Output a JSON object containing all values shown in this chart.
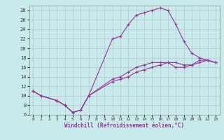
{
  "xlabel": "Windchill (Refroidissement éolien,°C)",
  "background_color": "#c8eaea",
  "grid_color": "#b0c8c8",
  "line_color": "#993399",
  "xlim": [
    -0.5,
    23.5
  ],
  "ylim": [
    6,
    29
  ],
  "xticks": [
    0,
    1,
    2,
    3,
    4,
    5,
    6,
    7,
    8,
    9,
    10,
    11,
    12,
    13,
    14,
    15,
    16,
    17,
    18,
    19,
    20,
    21,
    22,
    23
  ],
  "yticks": [
    6,
    8,
    10,
    12,
    14,
    16,
    18,
    20,
    22,
    24,
    26,
    28
  ],
  "line1_x": [
    0,
    1,
    3,
    4,
    5,
    6,
    7,
    10,
    11,
    12,
    13,
    14,
    15,
    16,
    17,
    18,
    19,
    20,
    21,
    22,
    23
  ],
  "line1_y": [
    11,
    10,
    9,
    8,
    6.5,
    7,
    10,
    22,
    22.5,
    25,
    27,
    27.5,
    28,
    28.5,
    28,
    25,
    21.5,
    19,
    18,
    17.5,
    17
  ],
  "line2_x": [
    0,
    1,
    3,
    4,
    5,
    6,
    7,
    10,
    11,
    12,
    13,
    14,
    15,
    16,
    17,
    18,
    19,
    20,
    21,
    22,
    23
  ],
  "line2_y": [
    11,
    10,
    9,
    8,
    6.5,
    7,
    10,
    13.5,
    14,
    15,
    16,
    16.5,
    17,
    17,
    17,
    16,
    16,
    16.5,
    17.5,
    17.5,
    17
  ],
  "line3_x": [
    0,
    1,
    3,
    4,
    5,
    6,
    7,
    10,
    11,
    12,
    13,
    14,
    15,
    16,
    17,
    18,
    19,
    20,
    21,
    22,
    23
  ],
  "line3_y": [
    11,
    10,
    9,
    8,
    6.5,
    7,
    10,
    13.0,
    13.5,
    14,
    15,
    15.5,
    16,
    16.5,
    17,
    17,
    16.5,
    16.5,
    17,
    17.5,
    17
  ]
}
